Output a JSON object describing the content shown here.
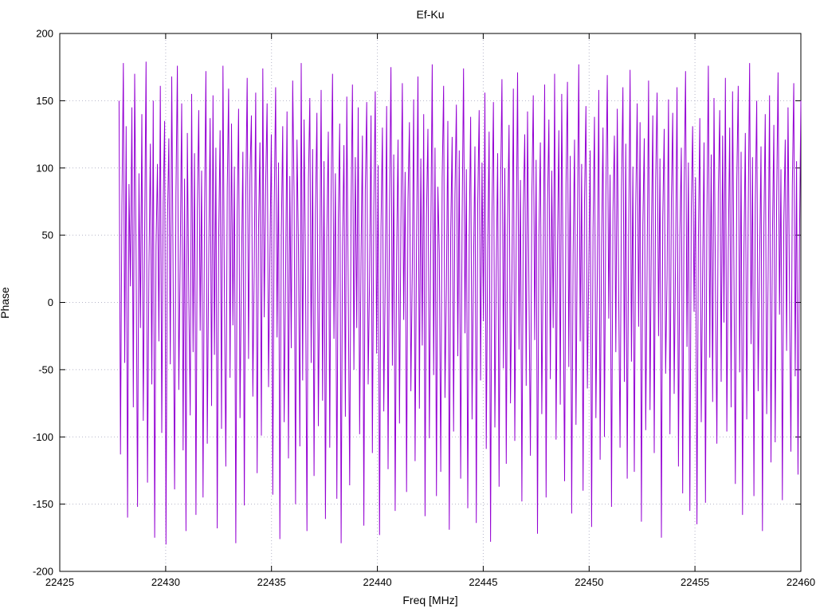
{
  "chart_data": {
    "type": "line",
    "title": "Ef-Ku",
    "xlabel": "Freq [MHz]",
    "ylabel": "Phase",
    "xlim": [
      22425,
      22460
    ],
    "ylim": [
      -200,
      200
    ],
    "xticks": [
      22425,
      22430,
      22435,
      22440,
      22445,
      22450,
      22455,
      22460
    ],
    "yticks": [
      -200,
      -150,
      -100,
      -50,
      0,
      50,
      100,
      150,
      200
    ],
    "grid": true,
    "legend": "none",
    "line_color": "#9400d3",
    "series": [
      {
        "name": "phase",
        "x_start": 22427.8,
        "x_end": 22460,
        "x_spacing": "linear",
        "values": [
          150,
          -113,
          72,
          178,
          -45,
          131,
          -160,
          88,
          12,
          145,
          -78,
          170,
          34,
          -152,
          96,
          -19,
          140,
          -88,
          57,
          179,
          -134,
          25,
          118,
          -61,
          150,
          -175,
          42,
          103,
          -29,
          161,
          -97,
          74,
          135,
          -180,
          58,
          122,
          -46,
          168,
          15,
          -139,
          81,
          176,
          -65,
          37,
          148,
          -110,
          92,
          -170,
          126,
          4,
          -84,
          155,
          -37,
          111,
          -158,
          69,
          143,
          -21,
          98,
          -145,
          63,
          172,
          -105,
          29,
          137,
          -77,
          154,
          -39,
          115,
          -168,
          47,
          128,
          -94,
          176,
          8,
          -122,
          85,
          159,
          -56,
          133,
          -17,
          101,
          -179,
          66,
          144,
          -86,
          23,
          112,
          -151,
          78,
          167,
          -42,
          95,
          139,
          -70,
          31,
          156,
          -127,
          53,
          119,
          -99,
          174,
          -11,
          87,
          148,
          -63,
          35,
          125,
          -143,
          71,
          160,
          -26,
          104,
          -176,
          49,
          131,
          -89,
          18,
          142,
          -116,
          94,
          -34,
          165,
          77,
          -150,
          121,
          43,
          -107,
          178,
          -58,
          136,
          22,
          -170,
          89,
          152,
          -45,
          114,
          -129,
          67,
          141,
          -92,
          30,
          158,
          -73,
          105,
          -161,
          51,
          127,
          -108,
          80,
          170,
          -27,
          96,
          -146,
          62,
          133,
          -179,
          41,
          117,
          -85,
          153,
          9,
          -136,
          74,
          162,
          -50,
          108,
          -19,
          145,
          -98,
          36,
          124,
          -166,
          83,
          149,
          -61,
          20,
          139,
          -112,
          70,
          157,
          -38,
          102,
          -173,
          55,
          130,
          -81,
          16,
          146,
          -124,
          68,
          175,
          -47,
          110,
          -155,
          33,
          121,
          -90,
          59,
          163,
          -13,
          97,
          -141,
          76,
          134,
          -66,
          24,
          151,
          -118,
          44,
          168,
          -79,
          107,
          -32,
          140,
          -159,
          64,
          129,
          -101,
          48,
          177,
          -54,
          115,
          -144,
          86,
          37,
          -126,
          93,
          161,
          -71,
          11,
          135,
          -169,
          52,
          123,
          -96,
          79,
          147,
          -40,
          113,
          -131,
          60,
          174,
          -23,
          99,
          -153,
          45,
          138,
          -87,
          26,
          116,
          -164,
          73,
          143,
          -58,
          104,
          -14,
          156,
          -109,
          39,
          127,
          -178,
          66,
          149,
          -93,
          21,
          111,
          -137,
          82,
          166,
          -49,
          100,
          -120,
          57,
          132,
          -75,
          17,
          159,
          -103,
          46,
          171,
          -35,
          91,
          -148,
          69,
          125,
          -62,
          142,
          8,
          -114,
          78,
          154,
          -28,
          106,
          -172,
          50,
          119,
          -83,
          34,
          162,
          -145,
          72,
          136,
          -57,
          98,
          -19,
          170,
          -102,
          41,
          128,
          -76,
          155,
          13,
          -133,
          88,
          164,
          -48,
          109,
          -157,
          36,
          121,
          -91,
          61,
          177,
          -29,
          103,
          -140,
          75,
          146,
          -64,
          27,
          113,
          -167,
          54,
          138,
          -86,
          22,
          158,
          -117,
          43,
          130,
          -100,
          80,
          169,
          -12,
          95,
          -152,
          67,
          124,
          -37,
          144,
          5,
          -108,
          84,
          160,
          -59,
          118,
          -131,
          49,
          173,
          -44,
          101,
          -126,
          71,
          148,
          -18,
          134,
          -163,
          58,
          122,
          -95,
          30,
          165,
          -80,
          47,
          139,
          -112,
          90,
          156,
          -25,
          107,
          -175,
          63,
          129,
          -53,
          19,
          151,
          -98,
          77,
          141,
          -68,
          35,
          160,
          -122,
          51,
          115,
          -142,
          86,
          172,
          -33,
          104,
          -155,
          70,
          131,
          -7,
          93,
          -165,
          45,
          137,
          -89,
          28,
          119,
          -149,
          64,
          176,
          -41,
          110,
          -74,
          152,
          16,
          -105,
          82,
          143,
          -59,
          124,
          -15,
          167,
          -96,
          38,
          130,
          -78,
          157,
          23,
          -135,
          91,
          161,
          -52,
          112,
          -158,
          40,
          126,
          -87,
          65,
          178,
          -31,
          108,
          -144,
          73,
          150,
          -66,
          29,
          116,
          -170,
          56,
          140,
          -83,
          20,
          154,
          -119,
          48,
          132,
          -104,
          76,
          171,
          -9,
          99,
          -147,
          60,
          121,
          -36,
          145,
          11,
          -111,
          87,
          163,
          -55,
          105,
          -128,
          44,
          150
        ]
      }
    ]
  }
}
